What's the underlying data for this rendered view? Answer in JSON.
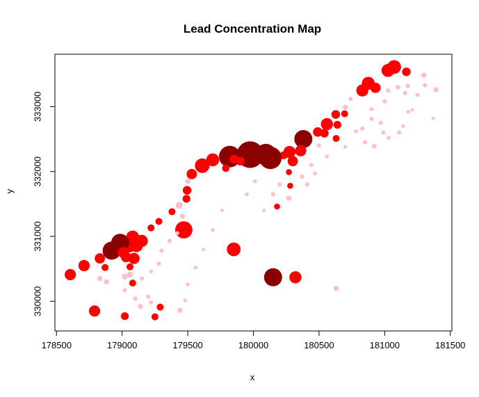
{
  "chart_data": {
    "type": "scatter",
    "title": "Lead Concentration Map",
    "xlabel": "x",
    "ylabel": "y",
    "xlim": [
      178600,
      181400
    ],
    "ylim": [
      329700,
      333650
    ],
    "x_ticks": [
      178500,
      179000,
      179500,
      180000,
      180500,
      181000,
      181500
    ],
    "y_ticks": [
      330000,
      331000,
      332000,
      333000
    ],
    "grid": false,
    "legend": "none",
    "colors": {
      "low": "#ffc0cb",
      "medium": "#ff0000",
      "high": "#b40000",
      "very_high": "#8b0000"
    },
    "points": [
      {
        "x": 181072,
        "y": 333611,
        "size": 3.2,
        "level": "medium"
      },
      {
        "x": 181025,
        "y": 333558,
        "size": 3.0,
        "level": "medium"
      },
      {
        "x": 181165,
        "y": 333537,
        "size": 2.0,
        "level": "medium"
      },
      {
        "x": 181298,
        "y": 333484,
        "size": 1.2,
        "level": "low"
      },
      {
        "x": 181307,
        "y": 333330,
        "size": 1.0,
        "level": "low"
      },
      {
        "x": 181390,
        "y": 333260,
        "size": 1.2,
        "level": "low"
      },
      {
        "x": 180930,
        "y": 333290,
        "size": 2.4,
        "level": "medium"
      },
      {
        "x": 180875,
        "y": 333360,
        "size": 3.0,
        "level": "medium"
      },
      {
        "x": 180830,
        "y": 333250,
        "size": 2.8,
        "level": "medium"
      },
      {
        "x": 181027,
        "y": 333250,
        "size": 1.0,
        "level": "low"
      },
      {
        "x": 181100,
        "y": 333300,
        "size": 1.1,
        "level": "low"
      },
      {
        "x": 181175,
        "y": 333320,
        "size": 1.0,
        "level": "low"
      },
      {
        "x": 181155,
        "y": 333210,
        "size": 1.0,
        "level": "low"
      },
      {
        "x": 181250,
        "y": 333180,
        "size": 0.9,
        "level": "low"
      },
      {
        "x": 181000,
        "y": 333080,
        "size": 1.0,
        "level": "low"
      },
      {
        "x": 181180,
        "y": 332920,
        "size": 0.9,
        "level": "low"
      },
      {
        "x": 181370,
        "y": 332820,
        "size": 0.8,
        "level": "low"
      },
      {
        "x": 180900,
        "y": 332960,
        "size": 0.9,
        "level": "low"
      },
      {
        "x": 180740,
        "y": 333120,
        "size": 1.0,
        "level": "low"
      },
      {
        "x": 180700,
        "y": 332990,
        "size": 1.2,
        "level": "low"
      },
      {
        "x": 180695,
        "y": 332890,
        "size": 1.6,
        "level": "medium"
      },
      {
        "x": 180627,
        "y": 332880,
        "size": 2.0,
        "level": "medium"
      },
      {
        "x": 180640,
        "y": 332720,
        "size": 1.8,
        "level": "medium"
      },
      {
        "x": 180560,
        "y": 332730,
        "size": 2.8,
        "level": "medium"
      },
      {
        "x": 180490,
        "y": 332610,
        "size": 2.2,
        "level": "medium"
      },
      {
        "x": 180540,
        "y": 332590,
        "size": 2.0,
        "level": "medium"
      },
      {
        "x": 180380,
        "y": 332500,
        "size": 4.2,
        "level": "very_high"
      },
      {
        "x": 180630,
        "y": 332510,
        "size": 1.6,
        "level": "medium"
      },
      {
        "x": 180500,
        "y": 332400,
        "size": 1.0,
        "level": "low"
      },
      {
        "x": 180360,
        "y": 332320,
        "size": 2.6,
        "level": "medium"
      },
      {
        "x": 180275,
        "y": 332300,
        "size": 2.8,
        "level": "medium"
      },
      {
        "x": 180300,
        "y": 332160,
        "size": 2.4,
        "level": "medium"
      },
      {
        "x": 180230,
        "y": 332250,
        "size": 1.8,
        "level": "medium"
      },
      {
        "x": 180130,
        "y": 332210,
        "size": 5.2,
        "level": "very_high"
      },
      {
        "x": 180095,
        "y": 332260,
        "size": 5.0,
        "level": "very_high"
      },
      {
        "x": 179975,
        "y": 332260,
        "size": 6.2,
        "level": "very_high"
      },
      {
        "x": 179820,
        "y": 332230,
        "size": 5.0,
        "level": "very_high"
      },
      {
        "x": 179900,
        "y": 332160,
        "size": 2.0,
        "level": "medium"
      },
      {
        "x": 179850,
        "y": 332190,
        "size": 2.0,
        "level": "medium"
      },
      {
        "x": 179790,
        "y": 332050,
        "size": 1.7,
        "level": "medium"
      },
      {
        "x": 179690,
        "y": 332180,
        "size": 3.0,
        "level": "medium"
      },
      {
        "x": 179610,
        "y": 332090,
        "size": 3.4,
        "level": "medium"
      },
      {
        "x": 179530,
        "y": 331960,
        "size": 2.4,
        "level": "medium"
      },
      {
        "x": 179500,
        "y": 331850,
        "size": 1.2,
        "level": "low"
      },
      {
        "x": 179495,
        "y": 331710,
        "size": 2.0,
        "level": "medium"
      },
      {
        "x": 179490,
        "y": 331580,
        "size": 1.8,
        "level": "medium"
      },
      {
        "x": 179435,
        "y": 331480,
        "size": 1.6,
        "level": "low"
      },
      {
        "x": 179460,
        "y": 331310,
        "size": 1.2,
        "level": "low"
      },
      {
        "x": 179470,
        "y": 331100,
        "size": 4.0,
        "level": "medium"
      },
      {
        "x": 179380,
        "y": 331380,
        "size": 1.6,
        "level": "medium"
      },
      {
        "x": 179280,
        "y": 331230,
        "size": 1.6,
        "level": "medium"
      },
      {
        "x": 179220,
        "y": 331130,
        "size": 1.6,
        "level": "medium"
      },
      {
        "x": 179150,
        "y": 330930,
        "size": 2.8,
        "level": "medium"
      },
      {
        "x": 179080,
        "y": 330990,
        "size": 3.0,
        "level": "medium"
      },
      {
        "x": 179055,
        "y": 330860,
        "size": 3.2,
        "level": "medium"
      },
      {
        "x": 179110,
        "y": 330850,
        "size": 2.8,
        "level": "medium"
      },
      {
        "x": 178985,
        "y": 330900,
        "size": 4.2,
        "level": "very_high"
      },
      {
        "x": 178920,
        "y": 330780,
        "size": 4.2,
        "level": "very_high"
      },
      {
        "x": 179010,
        "y": 330750,
        "size": 2.6,
        "level": "medium"
      },
      {
        "x": 179030,
        "y": 330680,
        "size": 2.4,
        "level": "medium"
      },
      {
        "x": 179090,
        "y": 330660,
        "size": 2.6,
        "level": "medium"
      },
      {
        "x": 179060,
        "y": 330530,
        "size": 1.6,
        "level": "medium"
      },
      {
        "x": 179060,
        "y": 330410,
        "size": 1.4,
        "level": "low"
      },
      {
        "x": 179080,
        "y": 330280,
        "size": 1.6,
        "level": "medium"
      },
      {
        "x": 179150,
        "y": 330350,
        "size": 1.0,
        "level": "low"
      },
      {
        "x": 179220,
        "y": 330460,
        "size": 0.9,
        "level": "low"
      },
      {
        "x": 179280,
        "y": 330580,
        "size": 1.0,
        "level": "low"
      },
      {
        "x": 179300,
        "y": 330780,
        "size": 1.0,
        "level": "low"
      },
      {
        "x": 179360,
        "y": 330930,
        "size": 1.0,
        "level": "low"
      },
      {
        "x": 179420,
        "y": 331050,
        "size": 0.9,
        "level": "low"
      },
      {
        "x": 178830,
        "y": 330660,
        "size": 2.4,
        "level": "medium"
      },
      {
        "x": 178710,
        "y": 330550,
        "size": 2.6,
        "level": "medium"
      },
      {
        "x": 178870,
        "y": 330520,
        "size": 1.6,
        "level": "medium"
      },
      {
        "x": 178605,
        "y": 330410,
        "size": 2.6,
        "level": "medium"
      },
      {
        "x": 178830,
        "y": 330350,
        "size": 1.2,
        "level": "low"
      },
      {
        "x": 178880,
        "y": 330300,
        "size": 1.2,
        "level": "low"
      },
      {
        "x": 179020,
        "y": 330380,
        "size": 1.4,
        "level": "low"
      },
      {
        "x": 179020,
        "y": 330170,
        "size": 1.0,
        "level": "low"
      },
      {
        "x": 179100,
        "y": 330040,
        "size": 1.0,
        "level": "low"
      },
      {
        "x": 179140,
        "y": 329920,
        "size": 1.2,
        "level": "low"
      },
      {
        "x": 179200,
        "y": 330070,
        "size": 1.0,
        "level": "low"
      },
      {
        "x": 179220,
        "y": 329980,
        "size": 1.0,
        "level": "low"
      },
      {
        "x": 179290,
        "y": 329910,
        "size": 1.6,
        "level": "medium"
      },
      {
        "x": 179250,
        "y": 329760,
        "size": 1.6,
        "level": "medium"
      },
      {
        "x": 179020,
        "y": 329770,
        "size": 1.8,
        "level": "medium"
      },
      {
        "x": 178790,
        "y": 329850,
        "size": 2.6,
        "level": "medium"
      },
      {
        "x": 179440,
        "y": 329860,
        "size": 1.2,
        "level": "low"
      },
      {
        "x": 179480,
        "y": 330010,
        "size": 0.9,
        "level": "low"
      },
      {
        "x": 179500,
        "y": 330260,
        "size": 0.9,
        "level": "low"
      },
      {
        "x": 179560,
        "y": 330520,
        "size": 0.9,
        "level": "low"
      },
      {
        "x": 179620,
        "y": 330800,
        "size": 0.8,
        "level": "low"
      },
      {
        "x": 179690,
        "y": 331100,
        "size": 0.9,
        "level": "low"
      },
      {
        "x": 179760,
        "y": 331400,
        "size": 0.8,
        "level": "low"
      },
      {
        "x": 179850,
        "y": 330800,
        "size": 3.2,
        "level": "medium"
      },
      {
        "x": 179950,
        "y": 331650,
        "size": 0.9,
        "level": "low"
      },
      {
        "x": 180010,
        "y": 331850,
        "size": 0.9,
        "level": "low"
      },
      {
        "x": 180150,
        "y": 331650,
        "size": 1.0,
        "level": "low"
      },
      {
        "x": 180200,
        "y": 331800,
        "size": 1.0,
        "level": "low"
      },
      {
        "x": 180180,
        "y": 331460,
        "size": 1.4,
        "level": "medium"
      },
      {
        "x": 180080,
        "y": 331400,
        "size": 0.8,
        "level": "low"
      },
      {
        "x": 180150,
        "y": 330370,
        "size": 4.2,
        "level": "very_high"
      },
      {
        "x": 180320,
        "y": 330370,
        "size": 2.8,
        "level": "medium"
      },
      {
        "x": 180630,
        "y": 330200,
        "size": 1.2,
        "level": "low"
      },
      {
        "x": 180270,
        "y": 331590,
        "size": 1.2,
        "level": "low"
      },
      {
        "x": 180280,
        "y": 331780,
        "size": 1.4,
        "level": "medium"
      },
      {
        "x": 180270,
        "y": 331990,
        "size": 1.4,
        "level": "medium"
      },
      {
        "x": 180370,
        "y": 331920,
        "size": 1.0,
        "level": "low"
      },
      {
        "x": 180410,
        "y": 331800,
        "size": 1.0,
        "level": "low"
      },
      {
        "x": 180440,
        "y": 332100,
        "size": 1.0,
        "level": "low"
      },
      {
        "x": 180470,
        "y": 331970,
        "size": 0.9,
        "level": "low"
      },
      {
        "x": 180560,
        "y": 332230,
        "size": 0.9,
        "level": "low"
      },
      {
        "x": 180700,
        "y": 332380,
        "size": 0.9,
        "level": "low"
      },
      {
        "x": 180780,
        "y": 332620,
        "size": 0.9,
        "level": "low"
      },
      {
        "x": 180830,
        "y": 332660,
        "size": 1.0,
        "level": "low"
      },
      {
        "x": 180900,
        "y": 332810,
        "size": 1.0,
        "level": "low"
      },
      {
        "x": 180970,
        "y": 332750,
        "size": 1.0,
        "level": "low"
      },
      {
        "x": 180850,
        "y": 332450,
        "size": 1.0,
        "level": "low"
      },
      {
        "x": 180920,
        "y": 332390,
        "size": 1.1,
        "level": "low"
      },
      {
        "x": 180990,
        "y": 332600,
        "size": 1.0,
        "level": "low"
      },
      {
        "x": 181030,
        "y": 332520,
        "size": 0.9,
        "level": "low"
      },
      {
        "x": 181110,
        "y": 332600,
        "size": 1.0,
        "level": "low"
      },
      {
        "x": 181140,
        "y": 332700,
        "size": 0.9,
        "level": "low"
      },
      {
        "x": 181210,
        "y": 332950,
        "size": 0.8,
        "level": "low"
      }
    ]
  }
}
